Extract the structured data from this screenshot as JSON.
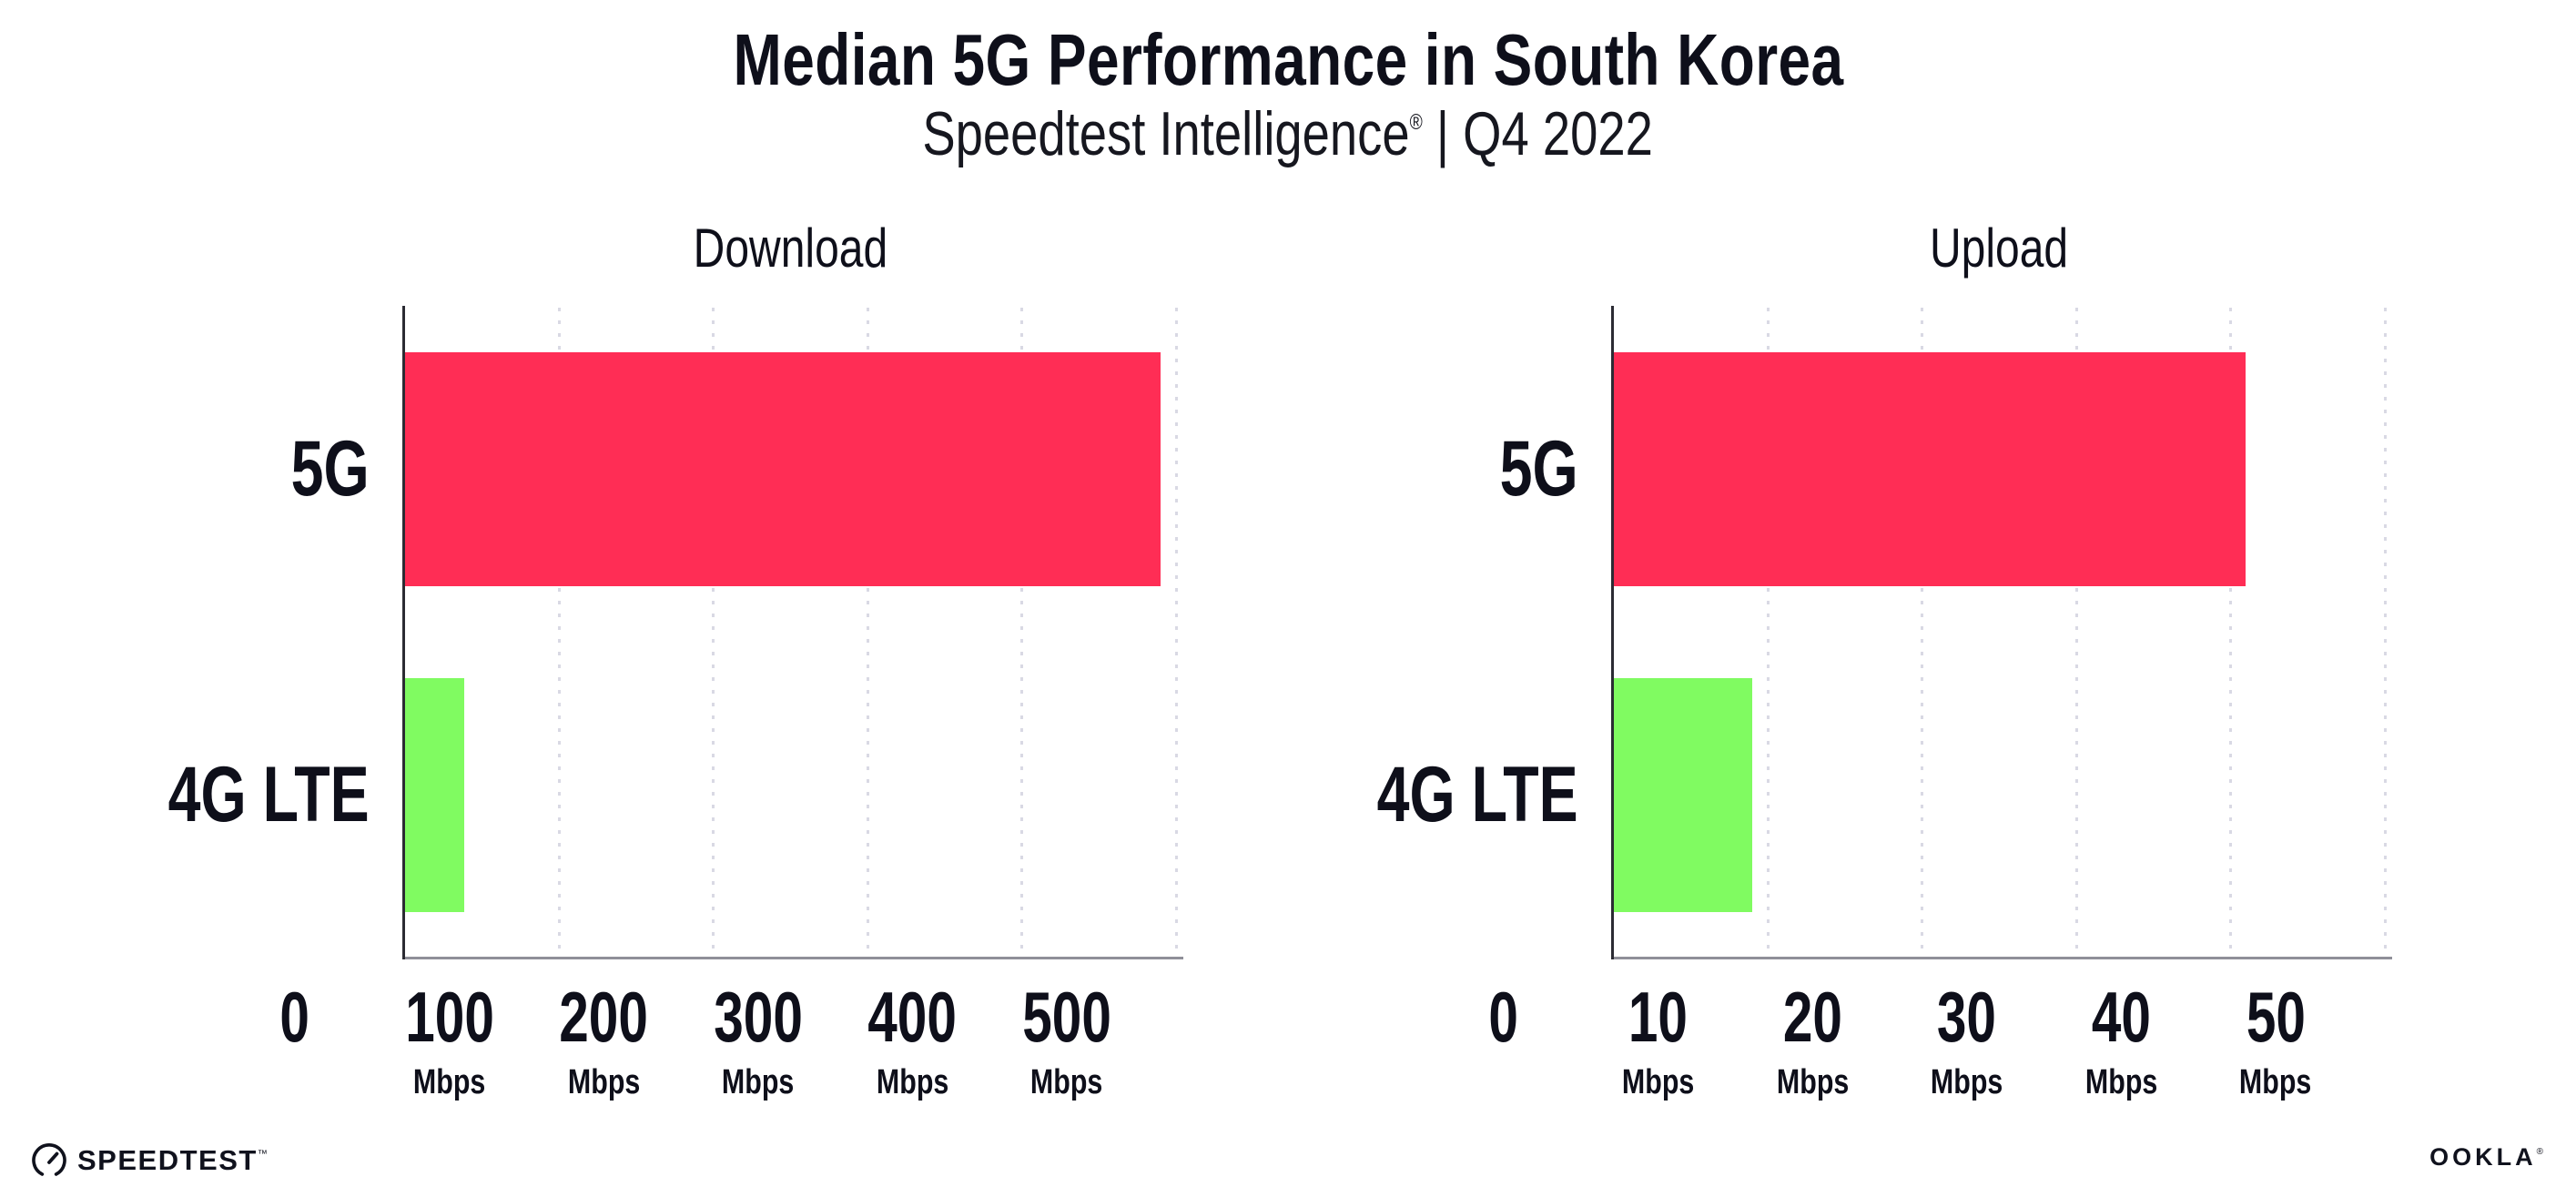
{
  "page": {
    "background": "#ffffff"
  },
  "header": {
    "title": "Median 5G Performance in South Korea",
    "subtitle_brand": "Speedtest Intelligence",
    "subtitle_reg": "®",
    "subtitle_rest": " | Q4 2022"
  },
  "palette": {
    "bar_5g": "#ff2d55",
    "bar_4g_lte": "#80fb61",
    "axis_line": "#2b2b33",
    "baseline": "#8f8f99",
    "grid_dot": "#d9d9e4",
    "text": "#0e0f1a"
  },
  "chart_data": [
    {
      "type": "bar",
      "orientation": "horizontal",
      "title": "Download",
      "categories": [
        "5G",
        "4G LTE"
      ],
      "values": [
        490,
        39
      ],
      "unit": "Mbps",
      "xlim": [
        0,
        500
      ],
      "xticks": [
        0,
        100,
        200,
        300,
        400,
        500
      ],
      "tick_unit_label": "Mbps",
      "bar_colors": [
        "#ff2d55",
        "#80fb61"
      ],
      "grid": "dotted-vertical",
      "legend": "none"
    },
    {
      "type": "bar",
      "orientation": "horizontal",
      "title": "Upload",
      "categories": [
        "5G",
        "4G LTE"
      ],
      "values": [
        41,
        9
      ],
      "unit": "Mbps",
      "xlim": [
        0,
        50
      ],
      "xticks": [
        0,
        10,
        20,
        30,
        40,
        50
      ],
      "tick_unit_label": "Mbps",
      "bar_colors": [
        "#ff2d55",
        "#80fb61"
      ],
      "grid": "dotted-vertical",
      "legend": "none"
    }
  ],
  "footer": {
    "speedtest_label": "SPEEDTEST",
    "speedtest_tm": "™",
    "ookla_label": "OOKLA",
    "ookla_reg": "®"
  }
}
